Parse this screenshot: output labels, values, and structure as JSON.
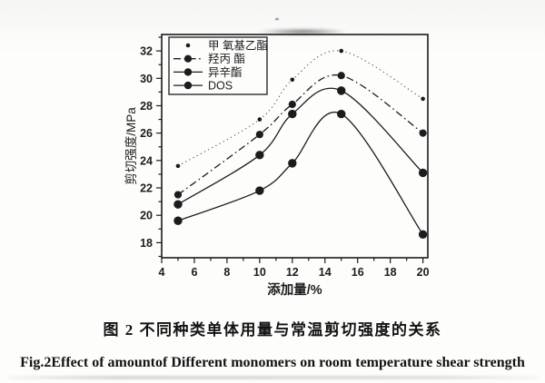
{
  "figure": {
    "caption_zh": "图 2 不同种类单体用量与常温剪切强度的关系",
    "caption_en": "Fig.2Effect of amountof Different monomers on room temperature shear strength"
  },
  "chart_data": {
    "type": "line",
    "title": "",
    "xlabel": "添加量/%",
    "ylabel": "剪切强度/MPa",
    "xlim": [
      4,
      20.3
    ],
    "ylim": [
      16.9,
      33.2
    ],
    "xticks": [
      4,
      6,
      8,
      10,
      12,
      14,
      16,
      18,
      20
    ],
    "yticks": [
      18,
      20,
      22,
      24,
      26,
      28,
      30,
      32
    ],
    "grid": false,
    "legend_position": "top-left",
    "x": [
      5,
      10,
      12,
      15,
      20
    ],
    "series": [
      {
        "name": "甲 氧基乙酯",
        "line_style": "dotted",
        "marker_size": "small",
        "values": [
          23.6,
          27.0,
          29.9,
          32.0,
          28.5
        ]
      },
      {
        "name": "羟丙 酯",
        "line_style": "dash-dot",
        "marker_size": "medium",
        "values": [
          21.5,
          25.9,
          28.1,
          30.2,
          26.0
        ]
      },
      {
        "name": "异辛酯",
        "line_style": "solid",
        "marker_size": "large",
        "values": [
          20.8,
          24.4,
          27.4,
          29.1,
          23.1
        ]
      },
      {
        "name": "DOS",
        "line_style": "solid",
        "marker_size": "large",
        "values": [
          19.6,
          21.8,
          23.8,
          27.4,
          18.6
        ]
      }
    ],
    "colors": {
      "ink": "#1c1c1c",
      "faint_line": "#4f4f4f"
    }
  }
}
